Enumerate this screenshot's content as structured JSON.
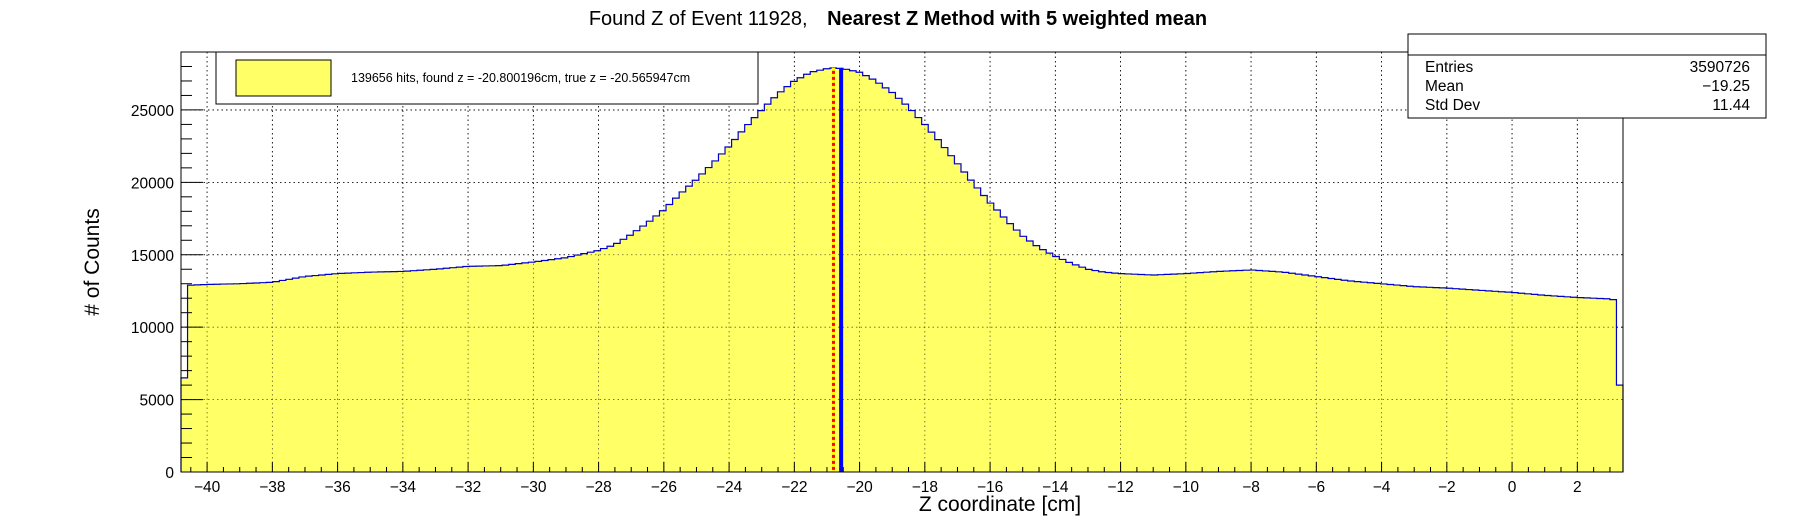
{
  "chart_data": {
    "type": "histogram",
    "title_prefix": "Found Z of Event 11928,",
    "title_bold": "Nearest Z Method with 5 weighted mean",
    "xlabel": "Z coordinate [cm]",
    "ylabel": "# of Counts",
    "xlim": [
      -40.8,
      3.4
    ],
    "ylim": [
      0,
      29000
    ],
    "x_ticks": [
      -40,
      -38,
      -36,
      -34,
      -32,
      -30,
      -28,
      -26,
      -24,
      -22,
      -20,
      -18,
      -16,
      -14,
      -12,
      -10,
      -8,
      -6,
      -4,
      -2,
      0,
      2
    ],
    "y_ticks": [
      0,
      5000,
      10000,
      15000,
      20000,
      25000
    ],
    "grid": true,
    "legend_position": "top-left",
    "legend_text": "139656 hits, found z = -20.800196cm, true z = -20.565947cm",
    "found_z": -20.800196,
    "true_z": -20.565947,
    "colors": {
      "fill": "#ffff66",
      "outline": "#0000cc",
      "found_line": "#ff0000",
      "true_line": "#0000ff",
      "found_line_dots": "#ffff00"
    },
    "envelope": {
      "x": [
        -40.8,
        -40.6,
        -40.5,
        -40,
        -39,
        -38,
        -37.5,
        -37,
        -36,
        -35,
        -34,
        -33,
        -32,
        -31,
        -30,
        -29,
        -28,
        -27.5,
        -27,
        -26.5,
        -26,
        -25.5,
        -25,
        -24.5,
        -24,
        -23.5,
        -23,
        -22.5,
        -22,
        -21.5,
        -21,
        -20.8,
        -20.5,
        -20,
        -19.5,
        -19,
        -18.5,
        -18,
        -17.5,
        -17,
        -16.5,
        -16,
        -15.5,
        -15,
        -14.5,
        -14,
        -13.5,
        -13,
        -12.5,
        -12,
        -11.5,
        -11,
        -10,
        -9,
        -8,
        -7,
        -6,
        -5,
        -4,
        -3,
        -2,
        -1,
        0,
        1,
        2,
        3,
        3.1,
        3.2,
        3.4
      ],
      "y": [
        6500,
        6500,
        12900,
        12950,
        13000,
        13100,
        13300,
        13500,
        13700,
        13800,
        13850,
        14000,
        14200,
        14250,
        14500,
        14800,
        15300,
        15700,
        16400,
        17200,
        18100,
        19200,
        20200,
        21300,
        22500,
        23800,
        25000,
        26100,
        27000,
        27600,
        27850,
        27900,
        27850,
        27600,
        27000,
        26200,
        25200,
        24000,
        22700,
        21300,
        19900,
        18600,
        17400,
        16300,
        15500,
        14900,
        14400,
        14000,
        13800,
        13700,
        13650,
        13600,
        13700,
        13850,
        13950,
        13800,
        13500,
        13200,
        13000,
        12800,
        12700,
        12550,
        12400,
        12200,
        12050,
        11950,
        11900,
        6000,
        6000
      ]
    },
    "stats": {
      "rows": [
        {
          "label": "Entries",
          "value": "3590726"
        },
        {
          "label": "Mean",
          "value": "−19.25"
        },
        {
          "label": "Std Dev",
          "value": "11.44"
        }
      ]
    }
  }
}
